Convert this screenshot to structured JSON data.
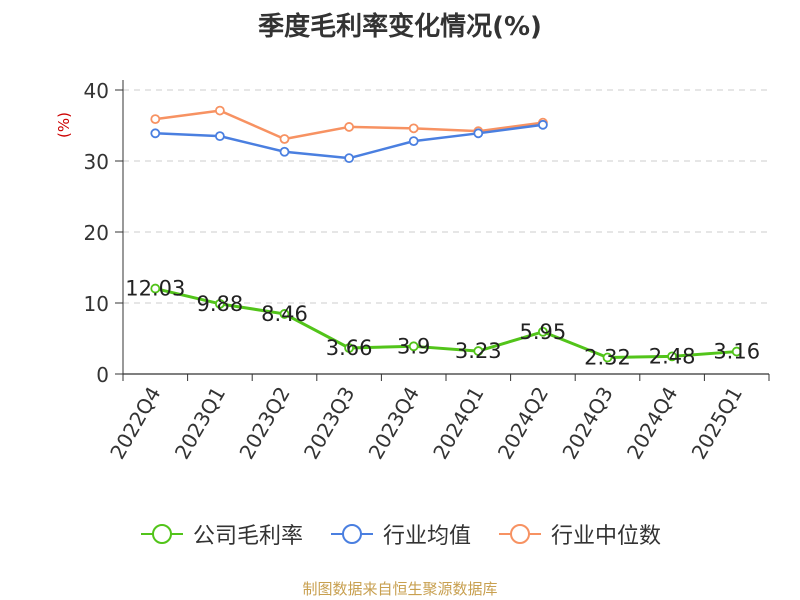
{
  "chart_data": {
    "type": "line",
    "title": "季度毛利率变化情况(%)",
    "ylabel": "(%)",
    "xlabel": "",
    "ylim": [
      0,
      40
    ],
    "yticks": [
      0,
      10,
      20,
      30,
      40
    ],
    "grid": "horizontal dashed",
    "legend_position": "bottom",
    "categories": [
      "2022Q4",
      "2023Q1",
      "2023Q2",
      "2023Q3",
      "2023Q4",
      "2024Q1",
      "2024Q2",
      "2024Q3",
      "2024Q4",
      "2025Q1"
    ],
    "series": [
      {
        "name": "公司毛利率",
        "color": "#52c41a",
        "values": [
          12.03,
          9.88,
          8.46,
          3.66,
          3.9,
          3.23,
          5.95,
          2.32,
          2.48,
          3.16
        ],
        "labels": [
          "12.03",
          "9.88",
          "8.46",
          "3.66",
          "3.9",
          "3.23",
          "5.95",
          "2.32",
          "2.48",
          "3.16"
        ]
      },
      {
        "name": "行业均值",
        "color": "#4a7fe0",
        "values": [
          33.9,
          33.5,
          31.3,
          30.4,
          32.8,
          33.9,
          35.1,
          null,
          null,
          null
        ]
      },
      {
        "name": "行业中位数",
        "color": "#f79262",
        "values": [
          35.9,
          37.1,
          33.1,
          34.8,
          34.6,
          34.2,
          35.4,
          null,
          null,
          null
        ]
      }
    ]
  },
  "legend": [
    {
      "label": "公司毛利率",
      "color": "#52c41a"
    },
    {
      "label": "行业均值",
      "color": "#4a7fe0"
    },
    {
      "label": "行业中位数",
      "color": "#f79262"
    }
  ],
  "source": "制图数据来自恒生聚源数据库"
}
